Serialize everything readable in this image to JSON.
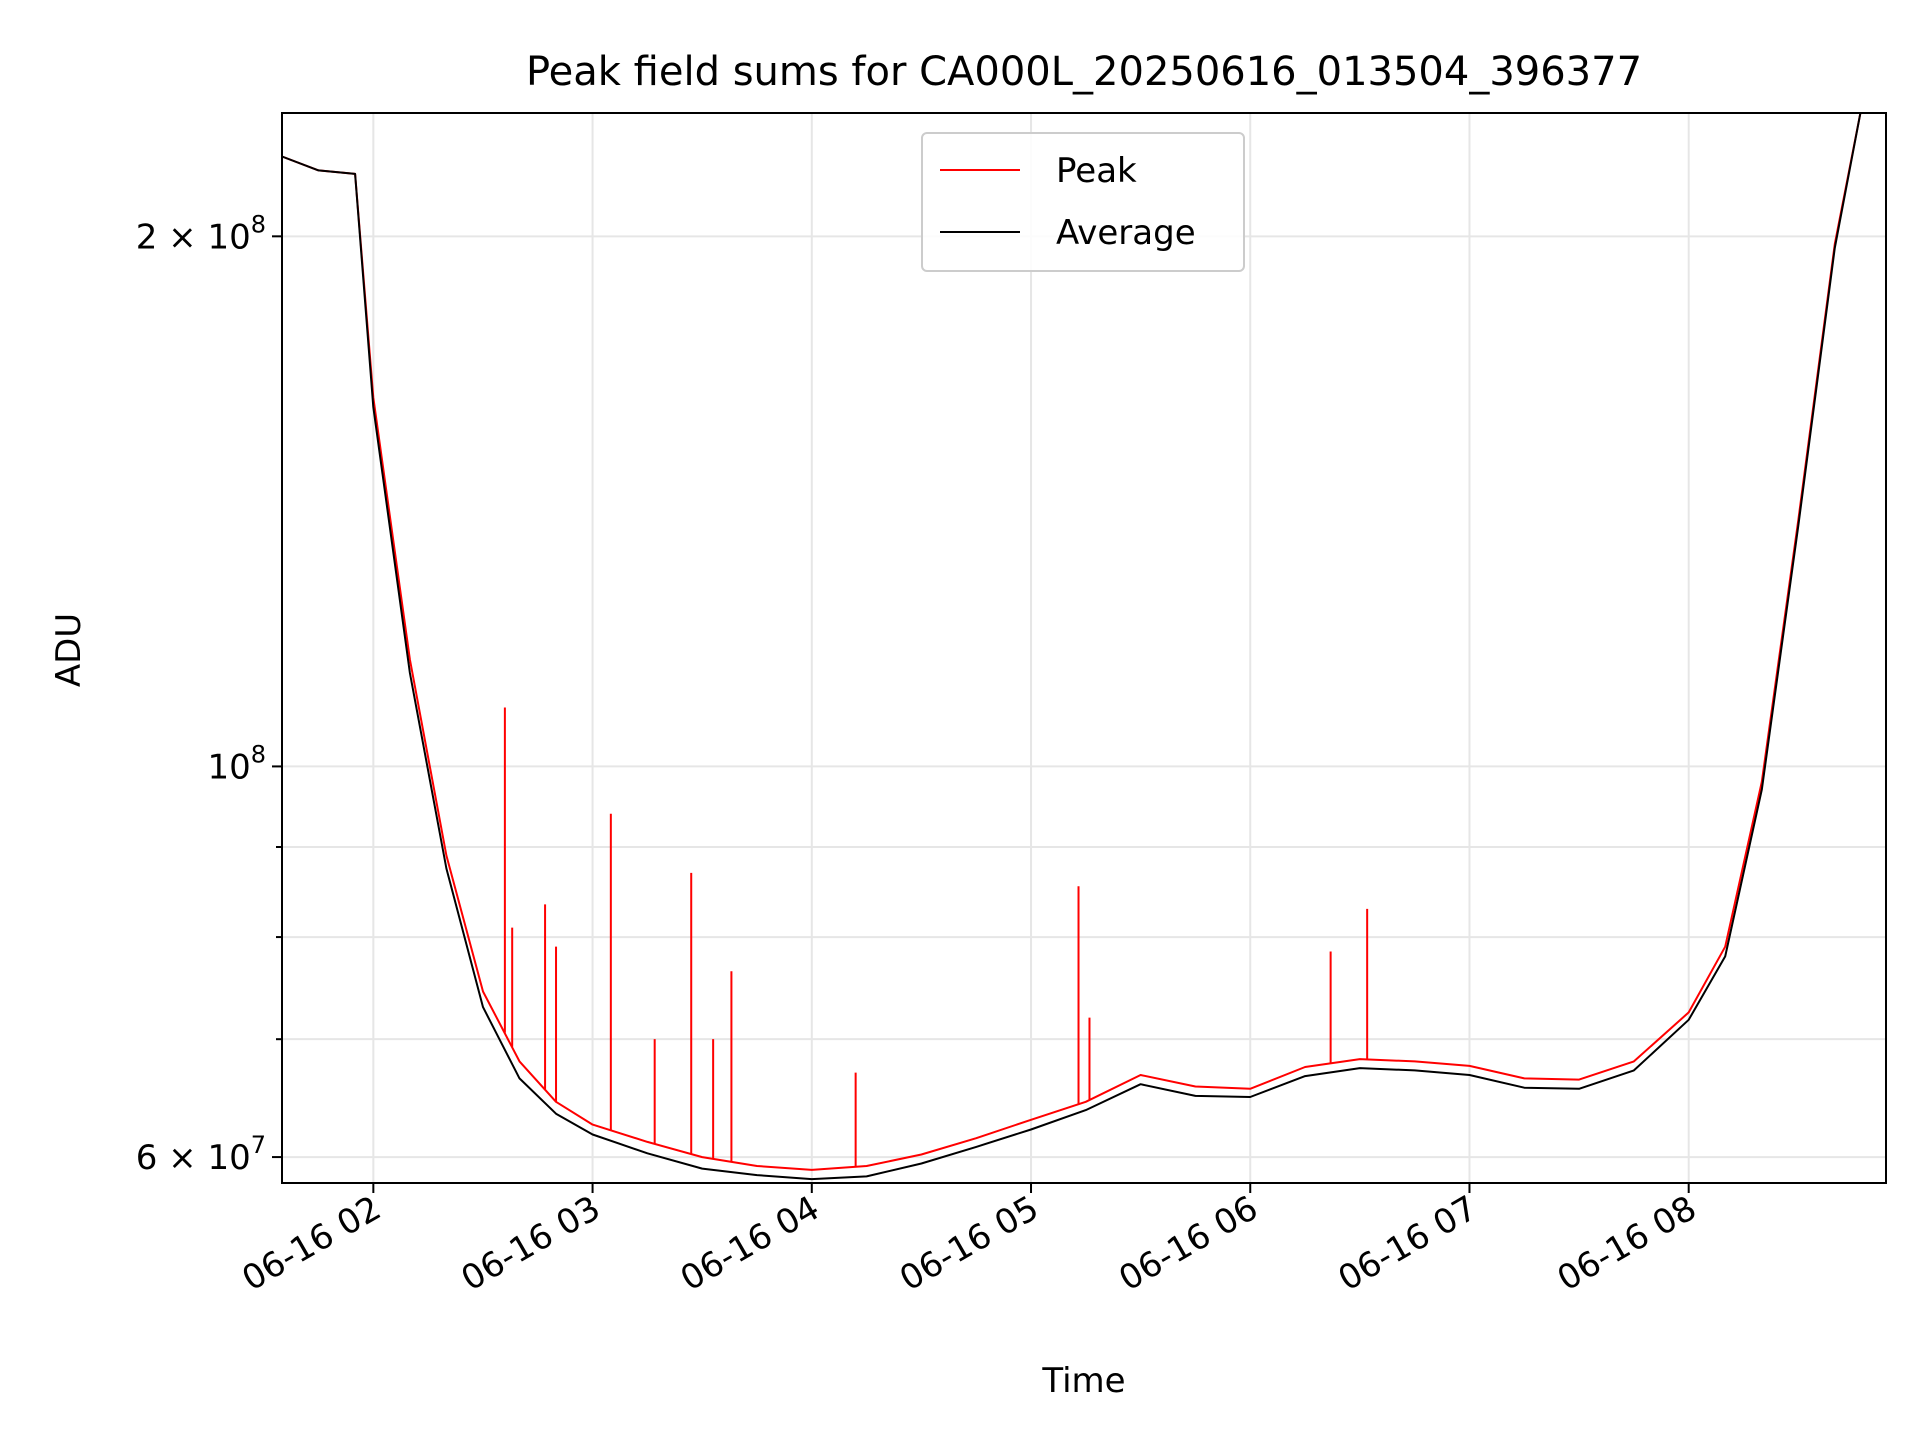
{
  "chart_data": {
    "type": "line",
    "title": "Peak field sums for CA000L_20250616_013504_396377",
    "xlabel": "Time",
    "ylabel": "ADU",
    "yscale": "log",
    "xlim": [
      "2025-06-16 01:35",
      "2025-06-16 08:54"
    ],
    "ylim": [
      58000000,
      235000000
    ],
    "grid": true,
    "legend_position": "top-center",
    "x_ticks": [
      {
        "value": "2025-06-16 02:00",
        "label": "06-16 02"
      },
      {
        "value": "2025-06-16 03:00",
        "label": "06-16 03"
      },
      {
        "value": "2025-06-16 04:00",
        "label": "06-16 04"
      },
      {
        "value": "2025-06-16 05:00",
        "label": "06-16 05"
      },
      {
        "value": "2025-06-16 06:00",
        "label": "06-16 06"
      },
      {
        "value": "2025-06-16 07:00",
        "label": "06-16 07"
      },
      {
        "value": "2025-06-16 08:00",
        "label": "06-16 08"
      }
    ],
    "y_ticks": [
      {
        "value": 200000000,
        "base": "2 × 10",
        "exp": "8"
      },
      {
        "value": 100000000,
        "base": "10",
        "exp": "8"
      },
      {
        "value": 60000000,
        "base": "6 × 10",
        "exp": "7"
      }
    ],
    "y_minor_ticks": [
      70000000,
      80000000,
      90000000
    ],
    "series": [
      {
        "name": "Peak",
        "color": "#ff0000",
        "x": [
          "2025-06-16 01:35",
          "2025-06-16 01:45",
          "2025-06-16 01:55",
          "2025-06-16 02:00",
          "2025-06-16 02:10",
          "2025-06-16 02:20",
          "2025-06-16 02:30",
          "2025-06-16 02:40",
          "2025-06-16 02:50",
          "2025-06-16 03:00",
          "2025-06-16 03:15",
          "2025-06-16 03:30",
          "2025-06-16 03:45",
          "2025-06-16 04:00",
          "2025-06-16 04:15",
          "2025-06-16 04:30",
          "2025-06-16 04:45",
          "2025-06-16 05:00",
          "2025-06-16 05:15",
          "2025-06-16 05:30",
          "2025-06-16 05:45",
          "2025-06-16 06:00",
          "2025-06-16 06:15",
          "2025-06-16 06:30",
          "2025-06-16 06:45",
          "2025-06-16 07:00",
          "2025-06-16 07:15",
          "2025-06-16 07:30",
          "2025-06-16 07:45",
          "2025-06-16 08:00",
          "2025-06-16 08:10",
          "2025-06-16 08:20",
          "2025-06-16 08:30",
          "2025-06-16 08:40",
          "2025-06-16 08:47"
        ],
        "y": [
          222000000,
          218000000,
          217000000,
          162000000,
          115000000,
          89000000,
          74500000,
          68000000,
          64500000,
          62600000,
          61200000,
          60000000,
          59300000,
          59000000,
          59300000,
          60200000,
          61500000,
          63000000,
          64500000,
          66800000,
          65800000,
          65600000,
          67500000,
          68200000,
          68000000,
          67600000,
          66500000,
          66400000,
          68000000,
          72500000,
          79000000,
          98000000,
          138000000,
          198000000,
          235000000
        ],
        "spikes": [
          {
            "x": "2025-06-16 02:36",
            "y": 108000000
          },
          {
            "x": "2025-06-16 02:38",
            "y": 81000000
          },
          {
            "x": "2025-06-16 02:47",
            "y": 83500000
          },
          {
            "x": "2025-06-16 02:50",
            "y": 79000000
          },
          {
            "x": "2025-06-16 03:05",
            "y": 94000000
          },
          {
            "x": "2025-06-16 03:17",
            "y": 70000000
          },
          {
            "x": "2025-06-16 03:27",
            "y": 87000000
          },
          {
            "x": "2025-06-16 03:33",
            "y": 70000000
          },
          {
            "x": "2025-06-16 03:38",
            "y": 76500000
          },
          {
            "x": "2025-06-16 04:12",
            "y": 67000000
          },
          {
            "x": "2025-06-16 05:13",
            "y": 85500000
          },
          {
            "x": "2025-06-16 05:16",
            "y": 72000000
          },
          {
            "x": "2025-06-16 06:22",
            "y": 78500000
          },
          {
            "x": "2025-06-16 06:32",
            "y": 83000000
          }
        ]
      },
      {
        "name": "Average",
        "color": "#000000",
        "x": [
          "2025-06-16 01:35",
          "2025-06-16 01:45",
          "2025-06-16 01:55",
          "2025-06-16 02:00",
          "2025-06-16 02:10",
          "2025-06-16 02:20",
          "2025-06-16 02:30",
          "2025-06-16 02:40",
          "2025-06-16 02:50",
          "2025-06-16 03:00",
          "2025-06-16 03:15",
          "2025-06-16 03:30",
          "2025-06-16 03:45",
          "2025-06-16 04:00",
          "2025-06-16 04:15",
          "2025-06-16 04:30",
          "2025-06-16 04:45",
          "2025-06-16 05:00",
          "2025-06-16 05:15",
          "2025-06-16 05:30",
          "2025-06-16 05:45",
          "2025-06-16 06:00",
          "2025-06-16 06:15",
          "2025-06-16 06:30",
          "2025-06-16 06:45",
          "2025-06-16 07:00",
          "2025-06-16 07:15",
          "2025-06-16 07:30",
          "2025-06-16 07:45",
          "2025-06-16 08:00",
          "2025-06-16 08:10",
          "2025-06-16 08:20",
          "2025-06-16 08:30",
          "2025-06-16 08:40",
          "2025-06-16 08:47"
        ],
        "y": [
          222000000,
          218000000,
          217000000,
          160000000,
          113000000,
          87500000,
          73000000,
          66500000,
          63500000,
          61800000,
          60300000,
          59100000,
          58600000,
          58300000,
          58500000,
          59500000,
          60800000,
          62200000,
          63800000,
          66000000,
          65000000,
          64900000,
          66700000,
          67400000,
          67200000,
          66800000,
          65700000,
          65600000,
          67200000,
          71800000,
          78000000,
          97000000,
          137000000,
          197000000,
          235000000
        ]
      }
    ]
  }
}
